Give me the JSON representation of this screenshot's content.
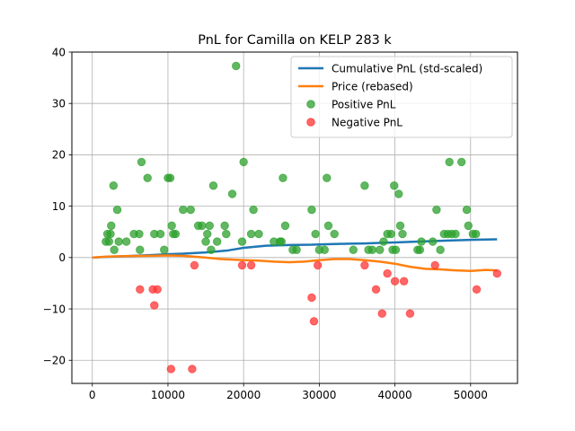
{
  "chart_data": {
    "type": "line",
    "title": "PnL for Camilla on KELP 283 k",
    "xlabel": "",
    "ylabel": "",
    "xlim": [
      -2700,
      56200
    ],
    "ylim": [
      -24.5,
      40
    ],
    "x_ticks": [
      0,
      10000,
      20000,
      30000,
      40000,
      50000
    ],
    "y_ticks": [
      -20,
      -10,
      0,
      10,
      20,
      30,
      40
    ],
    "grid": true,
    "legend_position": "top-right",
    "legend": [
      {
        "label": "Cumulative PnL (std-scaled)",
        "kind": "line",
        "color": "#1f77b4"
      },
      {
        "label": "Price (rebased)",
        "kind": "line",
        "color": "#ff7f0e"
      },
      {
        "label": "Positive PnL",
        "kind": "marker",
        "color": "#2ca02c"
      },
      {
        "label": "Negative PnL",
        "kind": "marker",
        "color": "#ff3333"
      }
    ],
    "series": [
      {
        "name": "Cumulative PnL (std-scaled)",
        "kind": "line",
        "color": "#1f77b4",
        "points": [
          [
            0,
            0.0
          ],
          [
            2000,
            0.15
          ],
          [
            5000,
            0.3
          ],
          [
            8000,
            0.5
          ],
          [
            10000,
            0.65
          ],
          [
            12000,
            0.75
          ],
          [
            15000,
            1.0
          ],
          [
            18000,
            1.4
          ],
          [
            20000,
            1.9
          ],
          [
            23000,
            2.3
          ],
          [
            26000,
            2.45
          ],
          [
            29000,
            2.5
          ],
          [
            31000,
            2.6
          ],
          [
            34000,
            2.7
          ],
          [
            36000,
            2.75
          ],
          [
            38000,
            2.85
          ],
          [
            40000,
            2.95
          ],
          [
            42000,
            3.05
          ],
          [
            45000,
            3.2
          ],
          [
            48000,
            3.35
          ],
          [
            50000,
            3.45
          ],
          [
            53500,
            3.55
          ]
        ]
      },
      {
        "name": "Price (rebased)",
        "kind": "line",
        "color": "#ff7f0e",
        "points": [
          [
            0,
            0.0
          ],
          [
            2000,
            0.2
          ],
          [
            5000,
            0.3
          ],
          [
            8000,
            0.35
          ],
          [
            10000,
            0.4
          ],
          [
            12000,
            0.35
          ],
          [
            15000,
            0.0
          ],
          [
            17000,
            -0.3
          ],
          [
            20000,
            -0.5
          ],
          [
            22000,
            -0.6
          ],
          [
            24000,
            -0.8
          ],
          [
            26000,
            -0.9
          ],
          [
            28000,
            -0.8
          ],
          [
            30000,
            -0.5
          ],
          [
            32000,
            -0.3
          ],
          [
            34000,
            -0.3
          ],
          [
            36000,
            -0.5
          ],
          [
            38000,
            -0.8
          ],
          [
            40000,
            -1.2
          ],
          [
            42000,
            -1.8
          ],
          [
            44000,
            -2.2
          ],
          [
            46000,
            -2.3
          ],
          [
            48000,
            -2.5
          ],
          [
            50000,
            -2.6
          ],
          [
            52000,
            -2.4
          ],
          [
            53500,
            -2.5
          ]
        ]
      },
      {
        "name": "Positive PnL",
        "kind": "scatter",
        "color": "#2ca02c",
        "points": [
          [
            1800,
            3.1
          ],
          [
            2000,
            4.6
          ],
          [
            2200,
            3.1
          ],
          [
            2400,
            4.6
          ],
          [
            2500,
            6.2
          ],
          [
            2800,
            14.0
          ],
          [
            2900,
            1.5
          ],
          [
            3300,
            9.3
          ],
          [
            3500,
            3.1
          ],
          [
            4500,
            3.1
          ],
          [
            5500,
            4.6
          ],
          [
            6200,
            4.6
          ],
          [
            6300,
            1.5
          ],
          [
            6500,
            18.6
          ],
          [
            7300,
            15.5
          ],
          [
            8200,
            4.6
          ],
          [
            9000,
            4.6
          ],
          [
            9500,
            1.5
          ],
          [
            10000,
            15.5
          ],
          [
            10300,
            15.5
          ],
          [
            10500,
            6.2
          ],
          [
            10700,
            4.6
          ],
          [
            11000,
            4.6
          ],
          [
            12000,
            9.3
          ],
          [
            13000,
            9.3
          ],
          [
            14000,
            6.2
          ],
          [
            14500,
            6.2
          ],
          [
            15000,
            3.1
          ],
          [
            15200,
            4.6
          ],
          [
            15500,
            6.2
          ],
          [
            15700,
            1.5
          ],
          [
            16000,
            14.0
          ],
          [
            16500,
            3.1
          ],
          [
            17500,
            6.2
          ],
          [
            17700,
            4.6
          ],
          [
            18500,
            12.4
          ],
          [
            19000,
            37.3
          ],
          [
            19800,
            3.1
          ],
          [
            20000,
            18.6
          ],
          [
            21000,
            4.6
          ],
          [
            21300,
            9.3
          ],
          [
            22000,
            4.6
          ],
          [
            24000,
            3.1
          ],
          [
            24800,
            3.1
          ],
          [
            25000,
            3.1
          ],
          [
            25200,
            15.5
          ],
          [
            25500,
            6.2
          ],
          [
            26500,
            1.5
          ],
          [
            27000,
            1.5
          ],
          [
            29000,
            9.3
          ],
          [
            29500,
            4.6
          ],
          [
            30000,
            1.5
          ],
          [
            30700,
            1.5
          ],
          [
            31000,
            15.5
          ],
          [
            31200,
            6.2
          ],
          [
            32000,
            4.6
          ],
          [
            34500,
            1.5
          ],
          [
            36000,
            14.0
          ],
          [
            36500,
            1.5
          ],
          [
            37000,
            1.5
          ],
          [
            38000,
            1.5
          ],
          [
            38500,
            3.1
          ],
          [
            39000,
            4.6
          ],
          [
            39500,
            4.6
          ],
          [
            39700,
            1.5
          ],
          [
            39900,
            14.0
          ],
          [
            40100,
            1.5
          ],
          [
            40500,
            12.4
          ],
          [
            40700,
            6.2
          ],
          [
            41000,
            4.6
          ],
          [
            43000,
            1.5
          ],
          [
            43300,
            1.5
          ],
          [
            43500,
            3.1
          ],
          [
            45000,
            3.1
          ],
          [
            45500,
            9.3
          ],
          [
            46000,
            1.5
          ],
          [
            46500,
            4.6
          ],
          [
            47000,
            4.6
          ],
          [
            47200,
            18.6
          ],
          [
            47500,
            4.6
          ],
          [
            48000,
            4.6
          ],
          [
            48800,
            18.6
          ],
          [
            49500,
            9.3
          ],
          [
            49700,
            6.2
          ],
          [
            50300,
            4.6
          ],
          [
            50700,
            4.6
          ]
        ]
      },
      {
        "name": "Negative PnL",
        "kind": "scatter",
        "color": "#ff3333",
        "points": [
          [
            6300,
            -6.2
          ],
          [
            8000,
            -6.2
          ],
          [
            8200,
            -9.3
          ],
          [
            8600,
            -6.2
          ],
          [
            10400,
            -21.7
          ],
          [
            13200,
            -21.7
          ],
          [
            13500,
            -1.5
          ],
          [
            19800,
            -1.5
          ],
          [
            21000,
            -1.5
          ],
          [
            29000,
            -7.8
          ],
          [
            29300,
            -12.4
          ],
          [
            29800,
            -1.5
          ],
          [
            36000,
            -1.5
          ],
          [
            37500,
            -6.2
          ],
          [
            38300,
            -10.9
          ],
          [
            39000,
            -3.1
          ],
          [
            40000,
            -4.6
          ],
          [
            41200,
            -4.6
          ],
          [
            42000,
            -10.9
          ],
          [
            45300,
            -1.5
          ],
          [
            50800,
            -6.2
          ],
          [
            53500,
            -3.1
          ]
        ]
      }
    ]
  }
}
